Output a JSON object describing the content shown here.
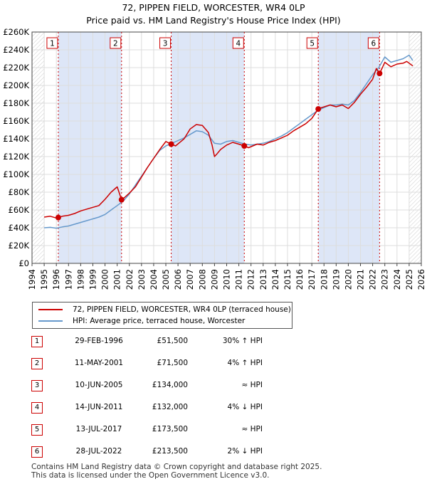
{
  "title_line1": "72, PIPPEN FIELD, WORCESTER, WR4 0LP",
  "title_line2": "Price paid vs. HM Land Registry's House Price Index (HPI)",
  "legend": {
    "property_label": "72, PIPPEN FIELD, WORCESTER, WR4 0LP (terraced house)",
    "hpi_label": "HPI: Average price, terraced house, Worcester"
  },
  "colors": {
    "property": "#cc0000",
    "hpi": "#6699cc",
    "shade": "#dde6f7",
    "grid": "#dddddd"
  },
  "sales": [
    {
      "num": "1",
      "date": "29-FEB-1996",
      "price": "£51,500",
      "hpi": "30% ↑ HPI"
    },
    {
      "num": "2",
      "date": "11-MAY-2001",
      "price": "£71,500",
      "hpi": "4% ↑ HPI"
    },
    {
      "num": "3",
      "date": "10-JUN-2005",
      "price": "£134,000",
      "hpi": "≈ HPI"
    },
    {
      "num": "4",
      "date": "14-JUN-2011",
      "price": "£132,000",
      "hpi": "4% ↓ HPI"
    },
    {
      "num": "5",
      "date": "13-JUL-2017",
      "price": "£173,500",
      "hpi": "≈ HPI"
    },
    {
      "num": "6",
      "date": "28-JUL-2022",
      "price": "£213,500",
      "hpi": "2% ↓ HPI"
    }
  ],
  "footer_line1": "Contains HM Land Registry data © Crown copyright and database right 2025.",
  "footer_line2": "This data is licensed under the Open Government Licence v3.0.",
  "chart_data": {
    "type": "line",
    "title": "72, PIPPEN FIELD, WORCESTER, WR4 0LP — Price paid vs. HM Land Registry's House Price Index (HPI)",
    "xlabel": "",
    "ylabel": "",
    "xlim": [
      1994,
      2026
    ],
    "ylim": [
      0,
      260000
    ],
    "grid": true,
    "x_ticks": [
      "1994",
      "1995",
      "1996",
      "1997",
      "1998",
      "1999",
      "2000",
      "2001",
      "2002",
      "2003",
      "2004",
      "2005",
      "2006",
      "2007",
      "2008",
      "2009",
      "2010",
      "2011",
      "2012",
      "2013",
      "2014",
      "2015",
      "2016",
      "2017",
      "2018",
      "2019",
      "2020",
      "2021",
      "2022",
      "2023",
      "2024",
      "2025",
      "2026"
    ],
    "y_ticks": [
      "£0",
      "£20K",
      "£40K",
      "£60K",
      "£80K",
      "£100K",
      "£120K",
      "£140K",
      "£160K",
      "£180K",
      "£200K",
      "£220K",
      "£240K",
      "£260K"
    ],
    "y_tick_values": [
      0,
      20000,
      40000,
      60000,
      80000,
      100000,
      120000,
      140000,
      160000,
      180000,
      200000,
      220000,
      240000,
      260000
    ],
    "sale_markers": [
      {
        "label": "1",
        "x": 1996.16,
        "y": 51500
      },
      {
        "label": "2",
        "x": 2001.36,
        "y": 71500
      },
      {
        "label": "3",
        "x": 2005.44,
        "y": 134000
      },
      {
        "label": "4",
        "x": 2011.45,
        "y": 132000
      },
      {
        "label": "5",
        "x": 2017.53,
        "y": 173500
      },
      {
        "label": "6",
        "x": 2022.57,
        "y": 213500
      }
    ],
    "shaded_ranges": [
      [
        1996.16,
        2001.36
      ],
      [
        2005.44,
        2011.45
      ],
      [
        2017.53,
        2022.57
      ]
    ],
    "hatched_ranges": [
      [
        1994,
        1995.0
      ],
      [
        2025.0,
        2026
      ]
    ],
    "series": [
      {
        "name": "72, PIPPEN FIELD, WORCESTER, WR4 0LP (terraced house)",
        "x": [
          1995.0,
          1995.5,
          1996.0,
          1996.16,
          1996.5,
          1997.0,
          1997.5,
          1998.0,
          1998.5,
          1999.0,
          1999.5,
          2000.0,
          2000.5,
          2001.0,
          2001.36,
          2001.6,
          2002.0,
          2002.5,
          2003.0,
          2003.5,
          2004.0,
          2004.5,
          2005.0,
          2005.44,
          2005.8,
          2006.5,
          2007.0,
          2007.5,
          2008.0,
          2008.5,
          2008.8,
          2009.0,
          2009.2,
          2009.5,
          2010.0,
          2010.5,
          2011.0,
          2011.45,
          2011.8,
          2012.5,
          2013.0,
          2013.5,
          2014.0,
          2014.5,
          2015.0,
          2015.5,
          2016.0,
          2016.5,
          2017.0,
          2017.53,
          2017.8,
          2018.5,
          2019.0,
          2019.5,
          2020.0,
          2020.5,
          2021.0,
          2021.5,
          2022.0,
          2022.3,
          2022.57,
          2022.8,
          2023.0,
          2023.5,
          2024.0,
          2024.5,
          2024.8,
          2025.0,
          2025.3
        ],
        "y": [
          52000,
          53000,
          51000,
          51500,
          53000,
          54000,
          56000,
          59000,
          61000,
          63000,
          65000,
          72000,
          80000,
          86000,
          71500,
          74000,
          79000,
          86000,
          97000,
          108000,
          118000,
          128000,
          137000,
          134000,
          132000,
          140000,
          151000,
          156000,
          155000,
          147000,
          133000,
          120000,
          123000,
          128000,
          133000,
          136000,
          134000,
          132000,
          130000,
          134000,
          133000,
          136000,
          138000,
          141000,
          144000,
          149000,
          153000,
          157000,
          163000,
          173500,
          175000,
          178000,
          176000,
          178000,
          174000,
          181000,
          190000,
          198000,
          207000,
          219000,
          213500,
          220000,
          226000,
          221000,
          224000,
          225000,
          227000,
          225000,
          222000
        ]
      },
      {
        "name": "HPI: Average price, terraced house, Worcester",
        "x": [
          1995.0,
          1995.5,
          1996.0,
          1996.5,
          1997.0,
          1997.5,
          1998.0,
          1998.5,
          1999.0,
          1999.5,
          2000.0,
          2000.5,
          2001.0,
          2001.5,
          2002.0,
          2002.5,
          2003.0,
          2003.5,
          2004.0,
          2004.5,
          2005.0,
          2005.5,
          2006.0,
          2006.5,
          2007.0,
          2007.5,
          2008.0,
          2008.5,
          2009.0,
          2009.5,
          2010.0,
          2010.5,
          2011.0,
          2011.5,
          2012.0,
          2012.5,
          2013.0,
          2013.5,
          2014.0,
          2014.5,
          2015.0,
          2015.5,
          2016.0,
          2016.5,
          2017.0,
          2017.5,
          2018.0,
          2018.5,
          2019.0,
          2019.5,
          2020.0,
          2020.5,
          2021.0,
          2021.5,
          2022.0,
          2022.5,
          2023.0,
          2023.5,
          2024.0,
          2024.5,
          2025.0,
          2025.3
        ],
        "y": [
          40000,
          40500,
          39500,
          41000,
          42000,
          44000,
          46000,
          48000,
          50000,
          52000,
          55000,
          60000,
          65000,
          70000,
          78000,
          88000,
          98000,
          108000,
          118000,
          127000,
          132000,
          135000,
          138000,
          141000,
          145000,
          149000,
          148000,
          144000,
          135000,
          134000,
          137000,
          138000,
          136000,
          134000,
          133000,
          134000,
          135000,
          137000,
          140000,
          143000,
          147000,
          152000,
          157000,
          162000,
          167000,
          172000,
          175000,
          178000,
          178000,
          179000,
          178000,
          183000,
          192000,
          202000,
          212000,
          220000,
          232000,
          226000,
          228000,
          230000,
          234000,
          228000
        ]
      }
    ]
  }
}
